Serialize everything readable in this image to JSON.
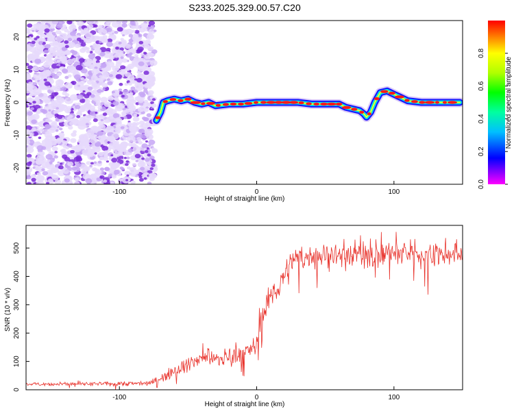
{
  "title": "S233.2025.329.00.57.C20",
  "colors": {
    "trace": "#e8322b",
    "scatter": "#7a2bd8",
    "axis": "#000000"
  },
  "chart_data": [
    {
      "type": "heatmap",
      "xlabel": "Height of straight line (km)",
      "ylabel": "Frequency (Hz)",
      "xlim": [
        -168,
        150
      ],
      "ylim": [
        -25,
        25
      ],
      "xticks": [
        -100,
        0,
        100
      ],
      "yticks": [
        -20,
        -10,
        0,
        10,
        20
      ],
      "noise_region_x": [
        -168,
        -74
      ],
      "ridge": {
        "x": [
          -73,
          -70,
          -68,
          -65,
          -60,
          -55,
          -50,
          -45,
          -40,
          -35,
          -30,
          -20,
          -10,
          0,
          10,
          20,
          30,
          40,
          50,
          60,
          65,
          70,
          75,
          78,
          80,
          83,
          86,
          90,
          95,
          100,
          105,
          110,
          120,
          130,
          140,
          148
        ],
        "y": [
          -5.5,
          -3,
          0,
          0.5,
          1,
          0.5,
          1,
          0,
          -0.5,
          0,
          -1,
          -0.5,
          -0.5,
          0,
          0,
          0,
          0,
          -0.5,
          -0.5,
          -0.5,
          -1.5,
          -2,
          -2.5,
          -3.5,
          -4.5,
          -3,
          0,
          3,
          3.5,
          2.5,
          1.5,
          0.5,
          0,
          0,
          0,
          0
        ]
      },
      "colorbar": {
        "label": "Normalized spectral amplitude",
        "range": [
          0,
          1
        ],
        "ticks": [
          0.0,
          0.2,
          0.4,
          0.6,
          0.8
        ],
        "tick_labels": [
          "0.0",
          "0.2",
          "0.4",
          "0.6",
          "0.8"
        ]
      }
    },
    {
      "type": "line",
      "xlabel": "Height of straight line (km)",
      "ylabel": "SNR (10 * v/v)",
      "xlim": [
        -168,
        150
      ],
      "ylim": [
        0,
        580
      ],
      "xticks": [
        -100,
        0,
        100
      ],
      "yticks": [
        0,
        100,
        200,
        300,
        400,
        500
      ],
      "series": [
        {
          "name": "SNR",
          "x": [
            -168,
            -140,
            -110,
            -90,
            -80,
            -75,
            -70,
            -65,
            -60,
            -55,
            -50,
            -45,
            -40,
            -35,
            -30,
            -25,
            -20,
            -15,
            -10,
            -5,
            0,
            2,
            5,
            8,
            10,
            15,
            20,
            25,
            30,
            40,
            50,
            60,
            70,
            80,
            90,
            100,
            110,
            120,
            130,
            140,
            150
          ],
          "values": [
            20,
            20,
            21,
            22,
            24,
            28,
            40,
            55,
            70,
            80,
            90,
            100,
            110,
            120,
            105,
            110,
            120,
            130,
            130,
            140,
            160,
            250,
            270,
            300,
            330,
            360,
            400,
            440,
            460,
            470,
            480,
            475,
            480,
            480,
            480,
            480,
            480,
            480,
            475,
            480,
            480
          ],
          "noise": [
            5,
            5,
            6,
            7,
            8,
            9,
            12,
            16,
            18,
            20,
            22,
            22,
            24,
            25,
            24,
            24,
            26,
            28,
            28,
            30,
            32,
            40,
            40,
            40,
            40,
            40,
            40,
            40,
            40,
            35,
            35,
            35,
            40,
            45,
            45,
            40,
            40,
            40,
            40,
            40,
            40
          ]
        }
      ]
    }
  ]
}
